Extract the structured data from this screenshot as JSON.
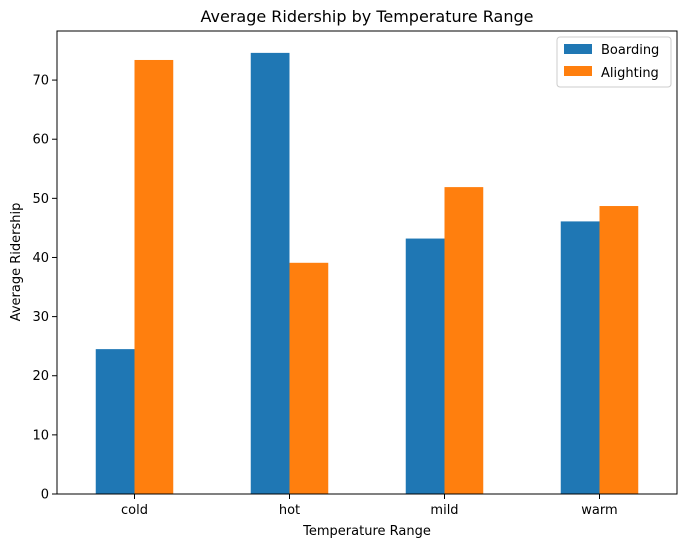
{
  "chart_data": {
    "type": "bar",
    "title": "Average Ridership by Temperature Range",
    "xlabel": "Temperature Range",
    "ylabel": "Average Ridership",
    "categories": [
      "cold",
      "hot",
      "mild",
      "warm"
    ],
    "series": [
      {
        "name": "Boarding",
        "values": [
          24.5,
          74.6,
          43.2,
          46.1
        ],
        "color": "#1f77b4"
      },
      {
        "name": "Alighting",
        "values": [
          73.4,
          39.1,
          51.9,
          48.7
        ],
        "color": "#ff7f0e"
      }
    ],
    "ylim": [
      0,
      78.3
    ],
    "yticks": [
      0,
      10,
      20,
      30,
      40,
      50,
      60,
      70
    ],
    "grid": false,
    "legend": "top-right"
  }
}
